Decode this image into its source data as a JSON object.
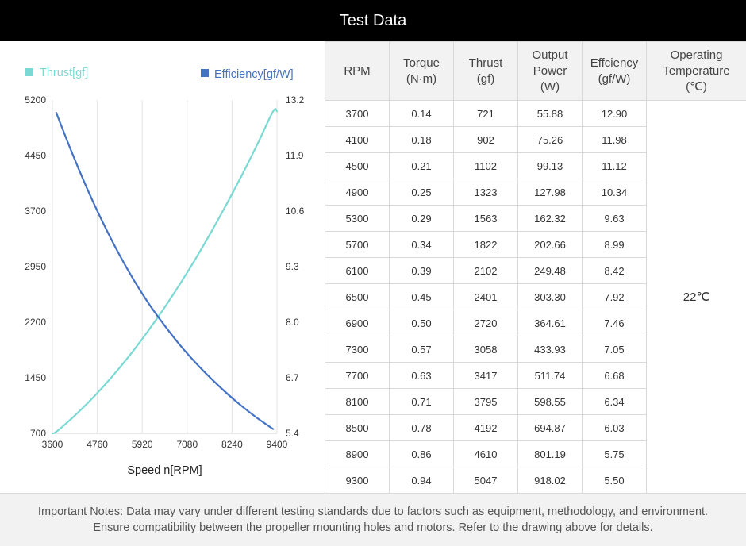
{
  "header": {
    "title": "Test Data"
  },
  "chart_data": {
    "type": "line",
    "xlabel": "Speed n[RPM]",
    "x_ticks": [
      "3600",
      "4760",
      "5920",
      "7080",
      "8240",
      "9400"
    ],
    "y_left_ticks": [
      "5200",
      "4450",
      "3700",
      "2950",
      "2200",
      "1450",
      "700"
    ],
    "y_right_ticks": [
      "13.2",
      "11.9",
      "10.6",
      "9.3",
      "8.0",
      "6.7",
      "5.4"
    ],
    "xlim": [
      3600,
      9400
    ],
    "ylim_left": [
      700,
      5200
    ],
    "ylim_right": [
      5.4,
      13.2
    ],
    "grid": "vertical",
    "legend": "top",
    "series": [
      {
        "name": "Thrust[gf]",
        "axis": "left",
        "color": "#7ad9d2",
        "x": [
          3600,
          3700,
          4100,
          4500,
          4900,
          5300,
          5700,
          6100,
          6500,
          6900,
          7300,
          7700,
          8100,
          8500,
          8900,
          9300,
          9400
        ],
        "values": [
          700,
          721,
          902,
          1102,
          1323,
          1563,
          1822,
          2102,
          2401,
          2720,
          3058,
          3417,
          3795,
          4192,
          4610,
          5047,
          5047
        ]
      },
      {
        "name": "Efficiency[gf/W]",
        "axis": "right",
        "color": "#4472c4",
        "x": [
          3700,
          4100,
          4500,
          4900,
          5300,
          5700,
          6100,
          6500,
          6900,
          7300,
          7700,
          8100,
          8500,
          8900,
          9300
        ],
        "values": [
          12.9,
          11.98,
          11.12,
          10.34,
          9.63,
          8.99,
          8.42,
          7.92,
          7.46,
          7.05,
          6.68,
          6.34,
          6.03,
          5.75,
          5.5
        ]
      }
    ]
  },
  "table": {
    "headers": [
      [
        "RPM"
      ],
      [
        "Torque",
        "(N·m)"
      ],
      [
        "Thrust",
        "(gf)"
      ],
      [
        "Output",
        "Power",
        "(W)"
      ],
      [
        "Effciency",
        "(gf/W)"
      ],
      [
        "Operating",
        "Temperature",
        "(℃)"
      ]
    ],
    "rows": [
      [
        "3700",
        "0.14",
        "721",
        "55.88",
        "12.90"
      ],
      [
        "4100",
        "0.18",
        "902",
        "75.26",
        "11.98"
      ],
      [
        "4500",
        "0.21",
        "1102",
        "99.13",
        "11.12"
      ],
      [
        "4900",
        "0.25",
        "1323",
        "127.98",
        "10.34"
      ],
      [
        "5300",
        "0.29",
        "1563",
        "162.32",
        "9.63"
      ],
      [
        "5700",
        "0.34",
        "1822",
        "202.66",
        "8.99"
      ],
      [
        "6100",
        "0.39",
        "2102",
        "249.48",
        "8.42"
      ],
      [
        "6500",
        "0.45",
        "2401",
        "303.30",
        "7.92"
      ],
      [
        "6900",
        "0.50",
        "2720",
        "364.61",
        "7.46"
      ],
      [
        "7300",
        "0.57",
        "3058",
        "433.93",
        "7.05"
      ],
      [
        "7700",
        "0.63",
        "3417",
        "511.74",
        "6.68"
      ],
      [
        "8100",
        "0.71",
        "3795",
        "598.55",
        "6.34"
      ],
      [
        "8500",
        "0.78",
        "4192",
        "694.87",
        "6.03"
      ],
      [
        "8900",
        "0.86",
        "4610",
        "801.19",
        "5.75"
      ],
      [
        "9300",
        "0.94",
        "5047",
        "918.02",
        "5.50"
      ]
    ],
    "temperature": "22℃"
  },
  "notes": {
    "line1": "Important Notes: Data may vary under different testing standards due to factors such as equipment, methodology, and environment.",
    "line2": "Ensure compatibility between the propeller mounting holes and motors. Refer to the drawing above for details."
  }
}
